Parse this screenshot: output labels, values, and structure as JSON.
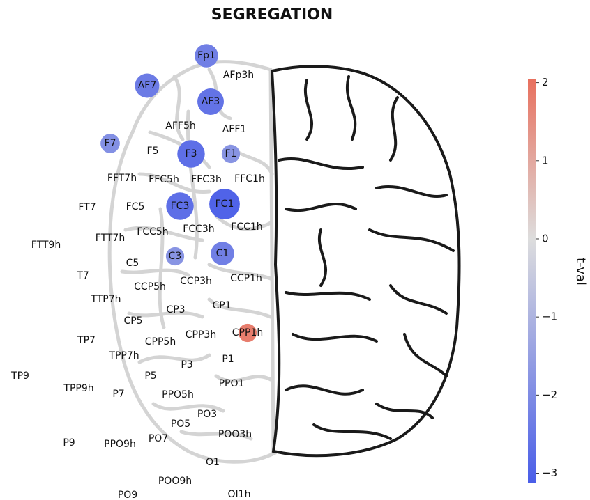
{
  "chart_data": {
    "type": "topography",
    "title": "SEGREGATION",
    "colorbar_label": "t-val",
    "labels": [
      "Fp1",
      "AFp3h",
      "AF7",
      "AF3",
      "AFF5h",
      "AFF1",
      "F7",
      "F5",
      "F3",
      "F1",
      "FFT7h",
      "FFC5h",
      "FFC3h",
      "FFC1h",
      "FT7",
      "FC5",
      "FC3",
      "FC1",
      "FTT7h",
      "FCC5h",
      "FCC3h",
      "FCC1h",
      "FTT9h",
      "C5",
      "C3",
      "C1",
      "T7",
      "CCP5h",
      "CCP3h",
      "CCP1h",
      "TTP7h",
      "CP3",
      "CP1",
      "CP5",
      "CPP1h",
      "TP7",
      "CPP3h",
      "CPP5h",
      "TPP7h",
      "P1",
      "P3",
      "TP9",
      "P5",
      "TPP9h",
      "P7",
      "PPO5h",
      "PPO1",
      "PO3",
      "PO5",
      "PO7",
      "POO3h",
      "P9",
      "PPO9h",
      "O1",
      "POO9h",
      "PO9",
      "OI1h"
    ],
    "values": [
      -2.3,
      null,
      -2.4,
      -2.6,
      null,
      null,
      -1.9,
      null,
      -2.7,
      -1.8,
      null,
      null,
      null,
      null,
      null,
      null,
      -2.7,
      -3.0,
      null,
      null,
      null,
      null,
      null,
      null,
      -1.8,
      -2.3,
      null,
      null,
      null,
      null,
      null,
      null,
      null,
      null,
      1.8,
      null,
      null,
      null,
      null,
      null,
      null,
      null,
      null,
      null,
      null,
      null,
      null,
      null,
      null,
      null,
      null,
      null,
      null,
      null,
      null,
      null,
      null
    ],
    "colormap": "coolwarm",
    "clim": [
      -3.12,
      2.05
    ],
    "cticks": [
      2,
      1,
      0,
      {
        "value": -1,
        "label": "−1"
      },
      {
        "value": -2,
        "label": "−2"
      },
      {
        "value": -3,
        "label": "−3"
      }
    ]
  }
}
